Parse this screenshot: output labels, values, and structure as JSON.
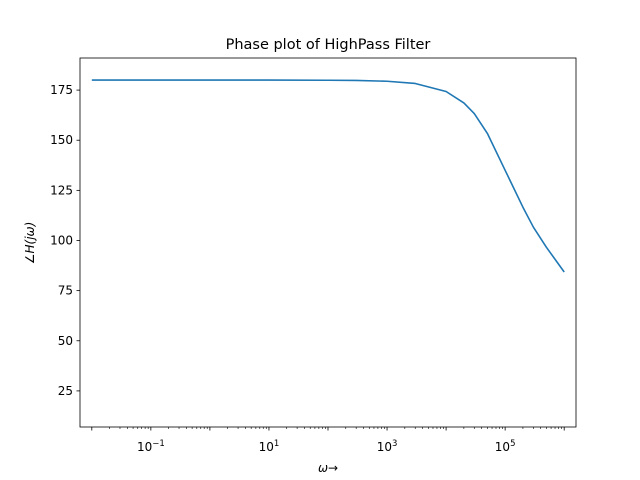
{
  "chart_data": {
    "type": "line",
    "title": "Phase plot of HighPass Filter",
    "xlabel": "ω→",
    "ylabel": "∠H(jω)",
    "xscale": "log",
    "xlim_exponent": [
      -2.2,
      6.2
    ],
    "ylim": [
      7,
      191
    ],
    "x_ticks": [
      {
        "value": 0.1,
        "base": "10",
        "exp": "−1"
      },
      {
        "value": 10,
        "base": "10",
        "exp": "1"
      },
      {
        "value": 1000,
        "base": "10",
        "exp": "3"
      },
      {
        "value": 100000,
        "base": "10",
        "exp": "5"
      }
    ],
    "y_ticks": [
      25,
      50,
      75,
      100,
      125,
      150,
      175
    ],
    "grid": false,
    "series": [
      {
        "color": "#1f77b4",
        "x": [
          0.01,
          0.1,
          1,
          10,
          100,
          300,
          1000,
          3000,
          10000,
          20000,
          30000,
          50000,
          100000,
          200000,
          300000,
          500000,
          1000000
        ],
        "y": [
          180,
          180,
          180,
          180,
          179.9,
          179.8,
          179.4,
          178.3,
          174.3,
          168.6,
          163.3,
          153.4,
          135,
          116.6,
          106.7,
          96.6,
          84.3
        ]
      }
    ]
  }
}
